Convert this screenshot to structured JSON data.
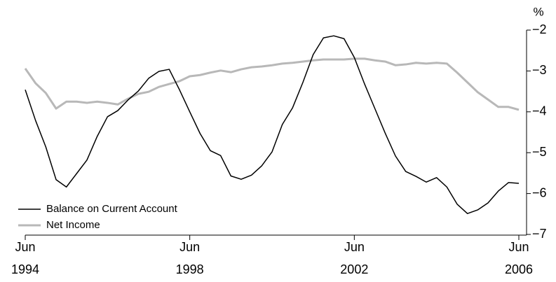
{
  "chart_data": {
    "type": "line",
    "y_unit": "%",
    "categories": [
      "Jun\n1994",
      null,
      null,
      null,
      null,
      null,
      null,
      null,
      null,
      null,
      null,
      null,
      null,
      null,
      null,
      null,
      "Jun\n1998",
      null,
      null,
      null,
      null,
      null,
      null,
      null,
      null,
      null,
      null,
      null,
      null,
      null,
      null,
      null,
      "Jun\n2002",
      null,
      null,
      null,
      null,
      null,
      null,
      null,
      null,
      null,
      null,
      null,
      null,
      null,
      null,
      null,
      "Jun\n2006"
    ],
    "series": [
      {
        "name": "Balance on Current Account",
        "color": "#000000",
        "values": [
          -3.46,
          -4.21,
          -4.86,
          -5.66,
          -5.84,
          -5.51,
          -5.18,
          -4.6,
          -4.12,
          -3.97,
          -3.71,
          -3.49,
          -3.18,
          -3.01,
          -2.96,
          -3.46,
          -4.0,
          -4.53,
          -4.95,
          -5.07,
          -5.57,
          -5.65,
          -5.55,
          -5.32,
          -4.98,
          -4.31,
          -3.9,
          -3.28,
          -2.6,
          -2.19,
          -2.14,
          -2.21,
          -2.67,
          -3.32,
          -3.92,
          -4.52,
          -5.08,
          -5.46,
          -5.58,
          -5.72,
          -5.61,
          -5.84,
          -6.26,
          -6.49,
          -6.4,
          -6.23,
          -5.94,
          -5.73,
          -5.75
        ]
      },
      {
        "name": "Net Income",
        "color": "#b8b8b8",
        "values": [
          -2.94,
          -3.3,
          -3.54,
          -3.92,
          -3.75,
          -3.75,
          -3.78,
          -3.75,
          -3.78,
          -3.82,
          -3.68,
          -3.56,
          -3.51,
          -3.39,
          -3.32,
          -3.25,
          -3.13,
          -3.1,
          -3.04,
          -2.99,
          -3.03,
          -2.96,
          -2.91,
          -2.89,
          -2.86,
          -2.82,
          -2.8,
          -2.77,
          -2.74,
          -2.72,
          -2.72,
          -2.72,
          -2.7,
          -2.7,
          -2.74,
          -2.77,
          -2.86,
          -2.84,
          -2.8,
          -2.82,
          -2.8,
          -2.82,
          -3.04,
          -3.28,
          -3.52,
          -3.7,
          -3.88,
          -3.88,
          -3.95
        ]
      }
    ],
    "ylim": [
      -7,
      -2
    ],
    "yticks": [
      {
        "value": -2,
        "label": "−2"
      },
      {
        "value": -3,
        "label": "−3"
      },
      {
        "value": -4,
        "label": "−4"
      },
      {
        "value": -5,
        "label": "−5"
      },
      {
        "value": -6,
        "label": "−6"
      },
      {
        "value": -7,
        "label": "−7"
      }
    ],
    "legend": "lower left"
  }
}
